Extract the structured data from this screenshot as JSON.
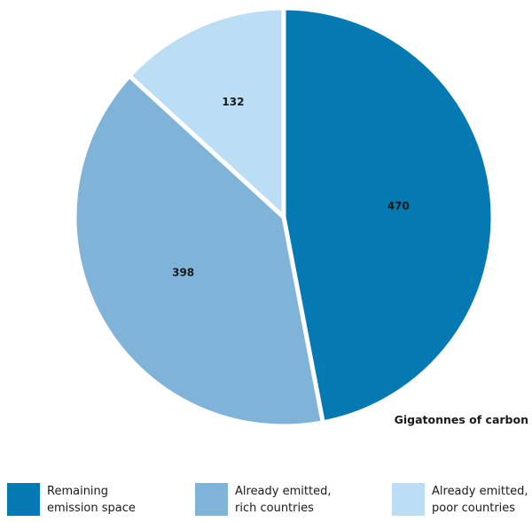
{
  "chart_data": {
    "type": "pie",
    "unit_note": "Gigatonnes of carbon",
    "slices": [
      {
        "label": "Remaining emission space",
        "value": 470,
        "color": "#0579b2"
      },
      {
        "label": "Already emitted, rich countries",
        "value": 398,
        "color": "#7fb4d8"
      },
      {
        "label": "Already emitted, poor countries",
        "value": 132,
        "color": "#bbdef4"
      }
    ]
  },
  "legend": [
    {
      "line1": "Remaining",
      "line2": "emission space",
      "color": "#0579b2"
    },
    {
      "line1": "Already emitted,",
      "line2": "rich countries",
      "color": "#7fb4d8"
    },
    {
      "line1": "Already emitted,",
      "line2": "poor countries",
      "color": "#bbdef4"
    }
  ]
}
